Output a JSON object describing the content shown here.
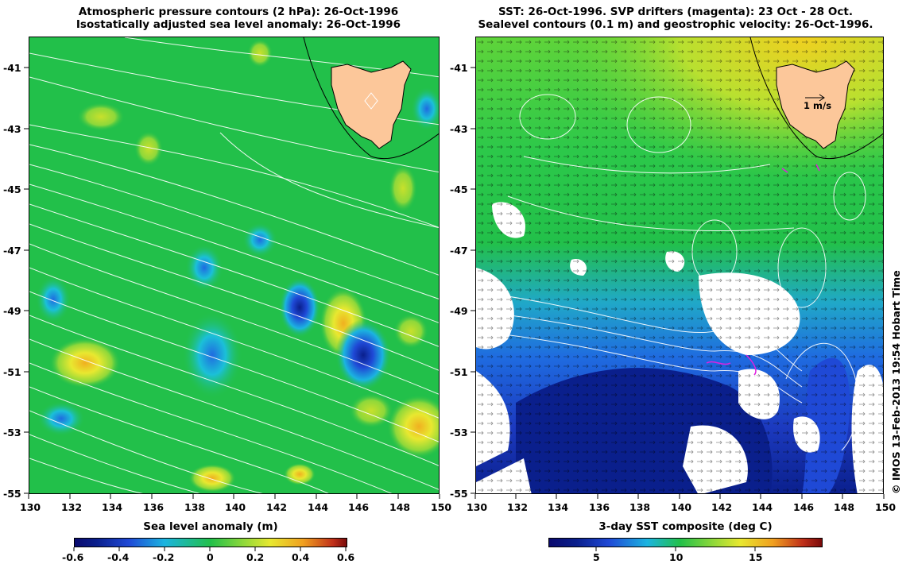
{
  "left_panel": {
    "title_line1": "Atmospheric pressure contours (2 hPa): 26-Oct-1996",
    "title_line2": "Isostatically adjusted sea level anomaly: 26-Oct-1996",
    "x_ticks": [
      "130",
      "132",
      "134",
      "136",
      "138",
      "140",
      "142",
      "144",
      "146",
      "148",
      "150"
    ],
    "y_ticks": [
      "-41",
      "-43",
      "-45",
      "-47",
      "-49",
      "-51",
      "-53",
      "-55"
    ],
    "colorbar": {
      "title": "Sea level anomaly (m)",
      "ticks": [
        "-0.6",
        "-0.4",
        "-0.2",
        "0",
        "0.2",
        "0.4",
        "0.6"
      ]
    }
  },
  "right_panel": {
    "title_line1": "SST: 26-Oct-1996. SVP drifters (magenta): 23 Oct - 28 Oct.",
    "title_line2": "Sealevel contours (0.1 m) and geostrophic velocity: 26-Oct-1996.",
    "x_ticks": [
      "130",
      "132",
      "134",
      "136",
      "138",
      "140",
      "142",
      "144",
      "146",
      "148",
      "150"
    ],
    "y_ticks": [
      "-41",
      "-43",
      "-45",
      "-47",
      "-49",
      "-51",
      "-53",
      "-55"
    ],
    "velocity_scale_label": "1 m/s",
    "colorbar": {
      "title": "3-day SST composite (deg C)",
      "ticks": [
        "5",
        "10",
        "15"
      ]
    }
  },
  "credit": "© IMOS 13-Feb-2013 19:54 Hobart Time",
  "colors": {
    "land": "#fcc79a",
    "ocean_green": "#22c04a",
    "ocean_yellowgreen": "#8ed83a",
    "cold_blue": "#1f49d6",
    "deep_navy": "#0a1f8c"
  }
}
